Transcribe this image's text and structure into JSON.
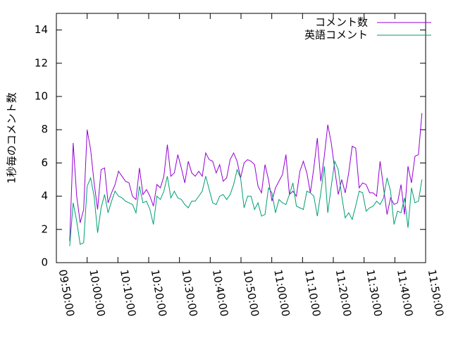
{
  "chart_data": {
    "type": "line",
    "ylabel": "1秒毎のコメント数",
    "x": [
      "09:54:20",
      "09:55:28",
      "09:56:36",
      "09:57:44",
      "09:58:52",
      "10:00:00",
      "10:01:08",
      "10:02:16",
      "10:03:24",
      "10:04:32",
      "10:05:40",
      "10:06:48",
      "10:07:56",
      "10:09:04",
      "10:10:12",
      "10:11:20",
      "10:12:28",
      "10:13:36",
      "10:14:44",
      "10:15:52",
      "10:17:00",
      "10:18:08",
      "10:19:16",
      "10:20:24",
      "10:21:32",
      "10:22:40",
      "10:23:48",
      "10:24:56",
      "10:26:04",
      "10:27:12",
      "10:28:20",
      "10:29:28",
      "10:30:36",
      "10:31:44",
      "10:32:52",
      "10:34:00",
      "10:35:08",
      "10:36:16",
      "10:37:24",
      "10:38:32",
      "10:39:40",
      "10:40:48",
      "10:41:56",
      "10:43:04",
      "10:44:12",
      "10:45:20",
      "10:46:28",
      "10:47:36",
      "10:48:44",
      "10:49:52",
      "10:51:00",
      "10:52:08",
      "10:53:16",
      "10:54:24",
      "10:55:32",
      "10:56:40",
      "10:57:48",
      "10:58:56",
      "11:00:04",
      "11:01:12",
      "11:02:20",
      "11:03:28",
      "11:04:36",
      "11:05:44",
      "11:06:52",
      "11:08:00",
      "11:09:08",
      "11:10:16",
      "11:11:24",
      "11:12:32",
      "11:13:40",
      "11:14:48",
      "11:15:56",
      "11:17:04",
      "11:18:12",
      "11:19:20",
      "11:20:28",
      "11:21:36",
      "11:22:44",
      "11:23:52",
      "11:25:00",
      "11:26:08",
      "11:27:16",
      "11:28:24",
      "11:29:32",
      "11:30:40",
      "11:31:48",
      "11:32:56",
      "11:34:04",
      "11:35:12",
      "11:36:20",
      "11:37:28",
      "11:38:36",
      "11:39:44",
      "11:40:52",
      "11:42:00",
      "11:43:08",
      "11:44:16",
      "11:45:24",
      "11:46:32",
      "11:47:40",
      "11:48:48"
    ],
    "series": [
      {
        "name": "コメント数",
        "color": "#9400d3",
        "values": [
          1.3,
          7.2,
          4.0,
          2.4,
          3.2,
          8.0,
          6.8,
          4.8,
          3.2,
          5.6,
          5.7,
          3.6,
          4.2,
          4.7,
          5.5,
          5.2,
          4.9,
          4.8,
          4.0,
          3.8,
          5.7,
          4.1,
          4.4,
          4.0,
          3.4,
          4.7,
          4.5,
          5.2,
          7.1,
          5.2,
          5.4,
          6.5,
          5.7,
          4.8,
          6.1,
          5.4,
          5.2,
          5.5,
          5.2,
          6.6,
          6.2,
          6.1,
          5.4,
          5.9,
          4.9,
          5.1,
          6.2,
          6.6,
          6.1,
          5.1,
          6.0,
          6.2,
          6.1,
          5.9,
          4.6,
          4.2,
          5.9,
          5.0,
          3.7,
          4.5,
          4.9,
          5.3,
          6.5,
          4.1,
          4.3,
          4.0,
          5.5,
          6.1,
          5.4,
          4.2,
          5.7,
          7.5,
          4.9,
          6.4,
          8.3,
          7.2,
          5.6,
          4.1,
          5.0,
          4.2,
          5.4,
          7.0,
          6.9,
          4.5,
          4.8,
          4.7,
          4.2,
          4.2,
          4.0,
          6.1,
          4.5,
          2.9,
          3.9,
          3.5,
          3.6,
          4.7,
          2.9,
          5.8,
          4.8,
          6.4,
          6.5,
          9.0
        ]
      },
      {
        "name": "英語コメント",
        "color": "#009e73",
        "values": [
          1.0,
          3.6,
          2.5,
          1.1,
          1.2,
          4.6,
          5.1,
          4.0,
          1.8,
          3.3,
          4.1,
          3.0,
          3.7,
          4.3,
          4.0,
          3.9,
          3.7,
          3.6,
          3.5,
          3.0,
          4.6,
          3.6,
          3.7,
          3.2,
          2.3,
          4.0,
          3.8,
          4.3,
          5.2,
          3.9,
          4.3,
          3.9,
          3.8,
          3.5,
          3.3,
          3.7,
          3.7,
          4.0,
          4.3,
          5.2,
          4.4,
          3.6,
          3.5,
          4.0,
          4.1,
          3.8,
          4.1,
          4.7,
          5.6,
          5.1,
          3.3,
          4.0,
          4.0,
          3.2,
          3.6,
          2.8,
          2.9,
          4.5,
          4.2,
          3.0,
          3.8,
          3.6,
          3.5,
          4.1,
          4.8,
          3.4,
          3.3,
          3.2,
          4.3,
          4.2,
          4.0,
          2.8,
          4.2,
          5.8,
          3.0,
          4.6,
          6.1,
          5.6,
          4.0,
          2.7,
          3.0,
          2.6,
          3.4,
          4.3,
          4.2,
          3.1,
          3.3,
          3.4,
          3.7,
          3.5,
          3.9,
          5.1,
          4.3,
          2.3,
          3.1,
          3.0,
          3.9,
          2.1,
          4.5,
          3.6,
          3.7,
          5.0
        ]
      }
    ],
    "xlim": [
      "09:50:00",
      "11:50:00"
    ],
    "xticks": [
      "09:50:00",
      "10:00:00",
      "10:10:00",
      "10:20:00",
      "10:30:00",
      "10:40:00",
      "10:50:00",
      "11:00:00",
      "11:10:00",
      "11:20:00",
      "11:30:00",
      "11:40:00",
      "11:50:00"
    ],
    "ylim": [
      0,
      15
    ],
    "yticks": [
      0,
      2,
      4,
      6,
      8,
      10,
      12,
      14
    ],
    "legend": "top-right"
  }
}
